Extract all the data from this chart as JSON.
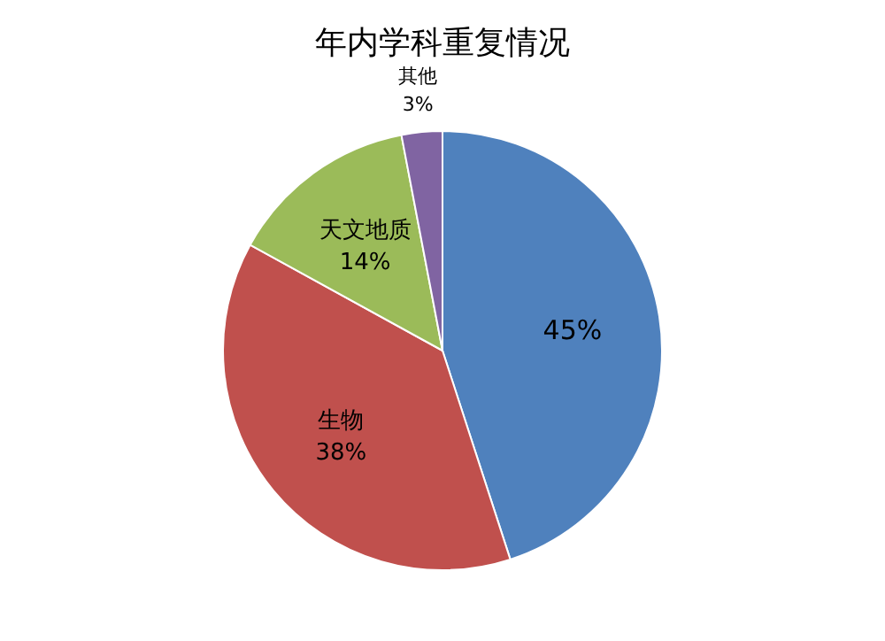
{
  "chart_data": {
    "type": "pie",
    "title": "年内学科重复情况",
    "categories": [
      null,
      "生物",
      "天文地质",
      "其他"
    ],
    "values": [
      45,
      38,
      14,
      3
    ],
    "value_labels": [
      "45%",
      "38%",
      "14%",
      "3%"
    ],
    "colors": [
      "#4f81bd",
      "#c0504d",
      "#9bbb59",
      "#8064a2"
    ]
  }
}
